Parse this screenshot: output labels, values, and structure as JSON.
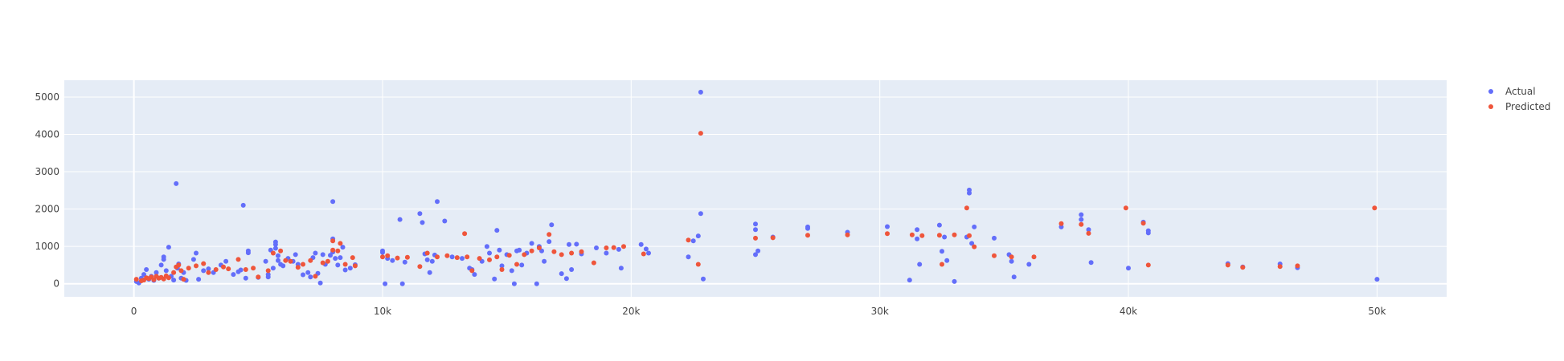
{
  "chart_data": {
    "type": "scatter",
    "title": "",
    "xlabel": "",
    "ylabel": "",
    "xlim": [
      -2800,
      52800
    ],
    "ylim": [
      -350,
      5450
    ],
    "x_ticks": [
      {
        "value": 0,
        "label": "0"
      },
      {
        "value": 10000,
        "label": "10k"
      },
      {
        "value": 20000,
        "label": "20k"
      },
      {
        "value": 30000,
        "label": "30k"
      },
      {
        "value": 40000,
        "label": "40k"
      },
      {
        "value": 50000,
        "label": "50k"
      }
    ],
    "y_ticks": [
      {
        "value": 0,
        "label": "0"
      },
      {
        "value": 1000,
        "label": "1000"
      },
      {
        "value": 2000,
        "label": "2000"
      },
      {
        "value": 3000,
        "label": "3000"
      },
      {
        "value": 4000,
        "label": "4000"
      },
      {
        "value": 5000,
        "label": "5000"
      }
    ],
    "grid": true,
    "legend_position": "top-right",
    "plot_background": "#e5ecf6",
    "series": [
      {
        "name": "Actual",
        "color": "#636efa",
        "points": [
          [
            100,
            60
          ],
          [
            200,
            20
          ],
          [
            300,
            150
          ],
          [
            400,
            250
          ],
          [
            500,
            380
          ],
          [
            600,
            120
          ],
          [
            700,
            200
          ],
          [
            800,
            90
          ],
          [
            900,
            300
          ],
          [
            1000,
            150
          ],
          [
            1100,
            500
          ],
          [
            1200,
            720
          ],
          [
            1200,
            650
          ],
          [
            1300,
            350
          ],
          [
            1400,
            980
          ],
          [
            1500,
            200
          ],
          [
            1600,
            100
          ],
          [
            1700,
            2680
          ],
          [
            1750,
            420
          ],
          [
            1800,
            530
          ],
          [
            1900,
            150
          ],
          [
            2000,
            300
          ],
          [
            2100,
            90
          ],
          [
            2400,
            650
          ],
          [
            2500,
            820
          ],
          [
            2600,
            120
          ],
          [
            2800,
            350
          ],
          [
            3000,
            400
          ],
          [
            3200,
            300
          ],
          [
            3500,
            500
          ],
          [
            3700,
            600
          ],
          [
            4000,
            250
          ],
          [
            4200,
            320
          ],
          [
            4300,
            370
          ],
          [
            4400,
            2100
          ],
          [
            4500,
            150
          ],
          [
            4600,
            830
          ],
          [
            4600,
            880
          ],
          [
            5000,
            170
          ],
          [
            5300,
            600
          ],
          [
            5400,
            180
          ],
          [
            5400,
            250
          ],
          [
            5500,
            900
          ],
          [
            5600,
            420
          ],
          [
            5700,
            1120
          ],
          [
            5700,
            1050
          ],
          [
            5700,
            950
          ],
          [
            5800,
            750
          ],
          [
            5800,
            620
          ],
          [
            5900,
            520
          ],
          [
            6000,
            480
          ],
          [
            6200,
            680
          ],
          [
            6400,
            600
          ],
          [
            6500,
            780
          ],
          [
            6600,
            520
          ],
          [
            6800,
            240
          ],
          [
            7000,
            300
          ],
          [
            7100,
            180
          ],
          [
            7200,
            700
          ],
          [
            7300,
            820
          ],
          [
            7400,
            280
          ],
          [
            7500,
            20
          ],
          [
            7600,
            780
          ],
          [
            7700,
            520
          ],
          [
            7900,
            760
          ],
          [
            8000,
            2200
          ],
          [
            8000,
            1200
          ],
          [
            8000,
            850
          ],
          [
            8100,
            680
          ],
          [
            8200,
            500
          ],
          [
            8300,
            700
          ],
          [
            8400,
            980
          ],
          [
            8500,
            370
          ],
          [
            8700,
            420
          ],
          [
            8900,
            510
          ],
          [
            10000,
            880
          ],
          [
            10000,
            840
          ],
          [
            10100,
            0
          ],
          [
            10200,
            680
          ],
          [
            10400,
            620
          ],
          [
            10700,
            1720
          ],
          [
            10800,
            0
          ],
          [
            10900,
            580
          ],
          [
            11500,
            1880
          ],
          [
            11600,
            1640
          ],
          [
            11700,
            800
          ],
          [
            11800,
            640
          ],
          [
            11900,
            300
          ],
          [
            12000,
            600
          ],
          [
            12100,
            770
          ],
          [
            12200,
            2200
          ],
          [
            12500,
            1680
          ],
          [
            12800,
            720
          ],
          [
            13200,
            680
          ],
          [
            13500,
            420
          ],
          [
            13600,
            380
          ],
          [
            13700,
            250
          ],
          [
            14000,
            600
          ],
          [
            14200,
            1000
          ],
          [
            14300,
            820
          ],
          [
            14500,
            130
          ],
          [
            14600,
            1430
          ],
          [
            14700,
            900
          ],
          [
            14800,
            480
          ],
          [
            15000,
            780
          ],
          [
            15200,
            350
          ],
          [
            15300,
            0
          ],
          [
            15400,
            880
          ],
          [
            15500,
            900
          ],
          [
            15600,
            500
          ],
          [
            15800,
            820
          ],
          [
            16000,
            1080
          ],
          [
            16200,
            0
          ],
          [
            16300,
            1000
          ],
          [
            16400,
            880
          ],
          [
            16500,
            600
          ],
          [
            16700,
            1130
          ],
          [
            16800,
            1580
          ],
          [
            17200,
            270
          ],
          [
            17400,
            140
          ],
          [
            17500,
            1050
          ],
          [
            17600,
            380
          ],
          [
            17800,
            1060
          ],
          [
            18000,
            800
          ],
          [
            18600,
            960
          ],
          [
            19000,
            820
          ],
          [
            19500,
            920
          ],
          [
            19600,
            420
          ],
          [
            20400,
            1050
          ],
          [
            20600,
            930
          ],
          [
            20700,
            820
          ],
          [
            22300,
            720
          ],
          [
            22500,
            1150
          ],
          [
            22700,
            1280
          ],
          [
            22800,
            5130
          ],
          [
            22800,
            1880
          ],
          [
            22900,
            130
          ],
          [
            25000,
            1600
          ],
          [
            25000,
            1450
          ],
          [
            25000,
            780
          ],
          [
            25100,
            880
          ],
          [
            25700,
            1250
          ],
          [
            27100,
            1520
          ],
          [
            27100,
            1480
          ],
          [
            28700,
            1380
          ],
          [
            30300,
            1530
          ],
          [
            31200,
            100
          ],
          [
            31500,
            1450
          ],
          [
            31500,
            1200
          ],
          [
            31600,
            520
          ],
          [
            32400,
            1570
          ],
          [
            32500,
            870
          ],
          [
            32600,
            1250
          ],
          [
            32700,
            620
          ],
          [
            33000,
            60
          ],
          [
            33500,
            1250
          ],
          [
            33600,
            2510
          ],
          [
            33600,
            2430
          ],
          [
            33700,
            1080
          ],
          [
            33800,
            1520
          ],
          [
            34600,
            1220
          ],
          [
            35200,
            780
          ],
          [
            35300,
            600
          ],
          [
            35400,
            180
          ],
          [
            36000,
            520
          ],
          [
            37300,
            1520
          ],
          [
            38100,
            1850
          ],
          [
            38100,
            1720
          ],
          [
            38400,
            1450
          ],
          [
            38500,
            570
          ],
          [
            40000,
            420
          ],
          [
            40600,
            1650
          ],
          [
            40800,
            1420
          ],
          [
            40800,
            1360
          ],
          [
            44000,
            540
          ],
          [
            44600,
            450
          ],
          [
            46100,
            530
          ],
          [
            46800,
            430
          ],
          [
            50000,
            120
          ]
        ]
      },
      {
        "name": "Predicted",
        "color": "#ef553b",
        "points": [
          [
            100,
            120
          ],
          [
            300,
            80
          ],
          [
            400,
            100
          ],
          [
            500,
            160
          ],
          [
            600,
            140
          ],
          [
            700,
            180
          ],
          [
            800,
            110
          ],
          [
            900,
            200
          ],
          [
            1000,
            150
          ],
          [
            1100,
            170
          ],
          [
            1200,
            130
          ],
          [
            1300,
            210
          ],
          [
            1400,
            160
          ],
          [
            1600,
            300
          ],
          [
            1700,
            450
          ],
          [
            1800,
            500
          ],
          [
            1900,
            350
          ],
          [
            2000,
            120
          ],
          [
            2200,
            420
          ],
          [
            2500,
            480
          ],
          [
            2800,
            540
          ],
          [
            3000,
            300
          ],
          [
            3300,
            380
          ],
          [
            3600,
            450
          ],
          [
            3800,
            400
          ],
          [
            4200,
            650
          ],
          [
            4500,
            380
          ],
          [
            4800,
            420
          ],
          [
            5000,
            180
          ],
          [
            5400,
            350
          ],
          [
            5600,
            820
          ],
          [
            5900,
            880
          ],
          [
            6100,
            620
          ],
          [
            6300,
            600
          ],
          [
            6600,
            440
          ],
          [
            6800,
            520
          ],
          [
            7100,
            620
          ],
          [
            7300,
            200
          ],
          [
            7600,
            560
          ],
          [
            7800,
            600
          ],
          [
            8000,
            1150
          ],
          [
            8000,
            900
          ],
          [
            8200,
            880
          ],
          [
            8300,
            1080
          ],
          [
            8500,
            520
          ],
          [
            8800,
            700
          ],
          [
            8900,
            480
          ],
          [
            10000,
            720
          ],
          [
            10200,
            750
          ],
          [
            10600,
            690
          ],
          [
            11000,
            710
          ],
          [
            11500,
            460
          ],
          [
            11800,
            820
          ],
          [
            12200,
            720
          ],
          [
            12600,
            750
          ],
          [
            13000,
            700
          ],
          [
            13300,
            1340
          ],
          [
            13400,
            720
          ],
          [
            13600,
            350
          ],
          [
            13900,
            680
          ],
          [
            14300,
            640
          ],
          [
            14600,
            720
          ],
          [
            14800,
            380
          ],
          [
            15100,
            760
          ],
          [
            15400,
            520
          ],
          [
            15700,
            780
          ],
          [
            16000,
            880
          ],
          [
            16300,
            960
          ],
          [
            16700,
            1320
          ],
          [
            16900,
            860
          ],
          [
            17200,
            780
          ],
          [
            17600,
            820
          ],
          [
            18000,
            860
          ],
          [
            18500,
            560
          ],
          [
            19000,
            960
          ],
          [
            19300,
            970
          ],
          [
            19700,
            1000
          ],
          [
            20500,
            800
          ],
          [
            22300,
            1170
          ],
          [
            22700,
            520
          ],
          [
            22800,
            4030
          ],
          [
            25000,
            1220
          ],
          [
            25700,
            1230
          ],
          [
            27100,
            1300
          ],
          [
            28700,
            1310
          ],
          [
            30300,
            1340
          ],
          [
            31300,
            1310
          ],
          [
            31700,
            1290
          ],
          [
            32400,
            1300
          ],
          [
            32500,
            520
          ],
          [
            33000,
            1310
          ],
          [
            33500,
            2030
          ],
          [
            33600,
            1290
          ],
          [
            33800,
            990
          ],
          [
            34600,
            750
          ],
          [
            35300,
            720
          ],
          [
            36200,
            720
          ],
          [
            37300,
            1610
          ],
          [
            38100,
            1590
          ],
          [
            38400,
            1350
          ],
          [
            39900,
            2030
          ],
          [
            40600,
            1620
          ],
          [
            40800,
            500
          ],
          [
            44000,
            500
          ],
          [
            44600,
            440
          ],
          [
            46100,
            460
          ],
          [
            46800,
            480
          ],
          [
            49900,
            2030
          ]
        ]
      }
    ]
  }
}
